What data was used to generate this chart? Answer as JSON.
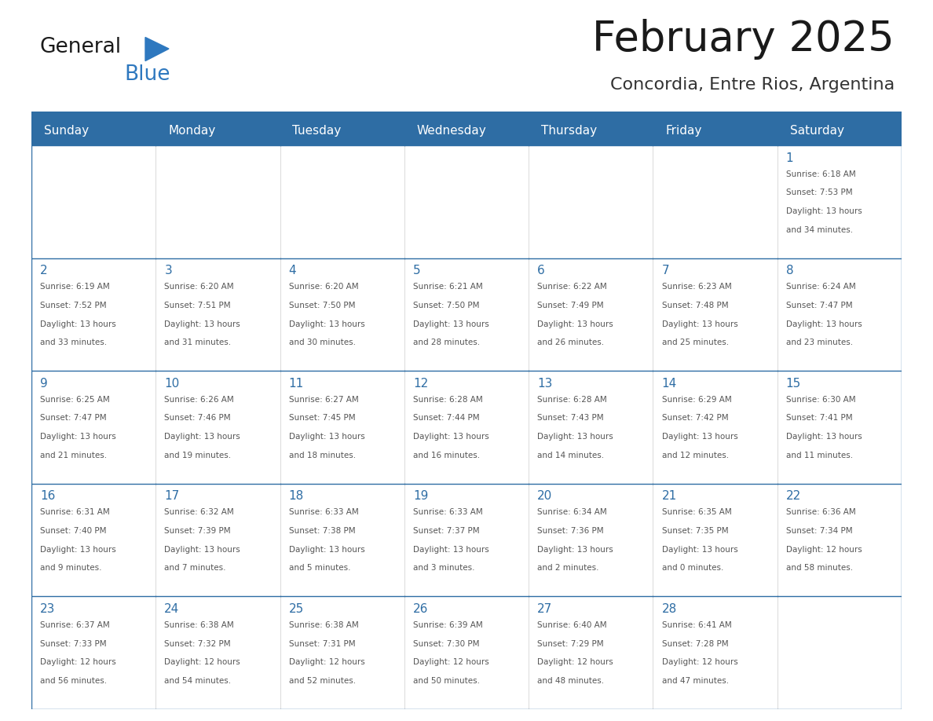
{
  "title": "February 2025",
  "subtitle": "Concordia, Entre Rios, Argentina",
  "header_bg": "#2E6DA4",
  "header_text": "#FFFFFF",
  "cell_bg": "#FFFFFF",
  "cell_bg_last_row": "#F5F5F5",
  "grid_line_color": "#2E6DA4",
  "day_number_color": "#2E6DA4",
  "cell_text_color": "#555555",
  "days_of_week": [
    "Sunday",
    "Monday",
    "Tuesday",
    "Wednesday",
    "Thursday",
    "Friday",
    "Saturday"
  ],
  "title_color": "#1a1a1a",
  "subtitle_color": "#333333",
  "logo_general_color": "#1a1a1a",
  "logo_blue_color": "#2E78BF",
  "calendar": [
    [
      {
        "day": "",
        "lines": []
      },
      {
        "day": "",
        "lines": []
      },
      {
        "day": "",
        "lines": []
      },
      {
        "day": "",
        "lines": []
      },
      {
        "day": "",
        "lines": []
      },
      {
        "day": "",
        "lines": []
      },
      {
        "day": "1",
        "lines": [
          "Sunrise: 6:18 AM",
          "Sunset: 7:53 PM",
          "Daylight: 13 hours",
          "and 34 minutes."
        ]
      }
    ],
    [
      {
        "day": "2",
        "lines": [
          "Sunrise: 6:19 AM",
          "Sunset: 7:52 PM",
          "Daylight: 13 hours",
          "and 33 minutes."
        ]
      },
      {
        "day": "3",
        "lines": [
          "Sunrise: 6:20 AM",
          "Sunset: 7:51 PM",
          "Daylight: 13 hours",
          "and 31 minutes."
        ]
      },
      {
        "day": "4",
        "lines": [
          "Sunrise: 6:20 AM",
          "Sunset: 7:50 PM",
          "Daylight: 13 hours",
          "and 30 minutes."
        ]
      },
      {
        "day": "5",
        "lines": [
          "Sunrise: 6:21 AM",
          "Sunset: 7:50 PM",
          "Daylight: 13 hours",
          "and 28 minutes."
        ]
      },
      {
        "day": "6",
        "lines": [
          "Sunrise: 6:22 AM",
          "Sunset: 7:49 PM",
          "Daylight: 13 hours",
          "and 26 minutes."
        ]
      },
      {
        "day": "7",
        "lines": [
          "Sunrise: 6:23 AM",
          "Sunset: 7:48 PM",
          "Daylight: 13 hours",
          "and 25 minutes."
        ]
      },
      {
        "day": "8",
        "lines": [
          "Sunrise: 6:24 AM",
          "Sunset: 7:47 PM",
          "Daylight: 13 hours",
          "and 23 minutes."
        ]
      }
    ],
    [
      {
        "day": "9",
        "lines": [
          "Sunrise: 6:25 AM",
          "Sunset: 7:47 PM",
          "Daylight: 13 hours",
          "and 21 minutes."
        ]
      },
      {
        "day": "10",
        "lines": [
          "Sunrise: 6:26 AM",
          "Sunset: 7:46 PM",
          "Daylight: 13 hours",
          "and 19 minutes."
        ]
      },
      {
        "day": "11",
        "lines": [
          "Sunrise: 6:27 AM",
          "Sunset: 7:45 PM",
          "Daylight: 13 hours",
          "and 18 minutes."
        ]
      },
      {
        "day": "12",
        "lines": [
          "Sunrise: 6:28 AM",
          "Sunset: 7:44 PM",
          "Daylight: 13 hours",
          "and 16 minutes."
        ]
      },
      {
        "day": "13",
        "lines": [
          "Sunrise: 6:28 AM",
          "Sunset: 7:43 PM",
          "Daylight: 13 hours",
          "and 14 minutes."
        ]
      },
      {
        "day": "14",
        "lines": [
          "Sunrise: 6:29 AM",
          "Sunset: 7:42 PM",
          "Daylight: 13 hours",
          "and 12 minutes."
        ]
      },
      {
        "day": "15",
        "lines": [
          "Sunrise: 6:30 AM",
          "Sunset: 7:41 PM",
          "Daylight: 13 hours",
          "and 11 minutes."
        ]
      }
    ],
    [
      {
        "day": "16",
        "lines": [
          "Sunrise: 6:31 AM",
          "Sunset: 7:40 PM",
          "Daylight: 13 hours",
          "and 9 minutes."
        ]
      },
      {
        "day": "17",
        "lines": [
          "Sunrise: 6:32 AM",
          "Sunset: 7:39 PM",
          "Daylight: 13 hours",
          "and 7 minutes."
        ]
      },
      {
        "day": "18",
        "lines": [
          "Sunrise: 6:33 AM",
          "Sunset: 7:38 PM",
          "Daylight: 13 hours",
          "and 5 minutes."
        ]
      },
      {
        "day": "19",
        "lines": [
          "Sunrise: 6:33 AM",
          "Sunset: 7:37 PM",
          "Daylight: 13 hours",
          "and 3 minutes."
        ]
      },
      {
        "day": "20",
        "lines": [
          "Sunrise: 6:34 AM",
          "Sunset: 7:36 PM",
          "Daylight: 13 hours",
          "and 2 minutes."
        ]
      },
      {
        "day": "21",
        "lines": [
          "Sunrise: 6:35 AM",
          "Sunset: 7:35 PM",
          "Daylight: 13 hours",
          "and 0 minutes."
        ]
      },
      {
        "day": "22",
        "lines": [
          "Sunrise: 6:36 AM",
          "Sunset: 7:34 PM",
          "Daylight: 12 hours",
          "and 58 minutes."
        ]
      }
    ],
    [
      {
        "day": "23",
        "lines": [
          "Sunrise: 6:37 AM",
          "Sunset: 7:33 PM",
          "Daylight: 12 hours",
          "and 56 minutes."
        ]
      },
      {
        "day": "24",
        "lines": [
          "Sunrise: 6:38 AM",
          "Sunset: 7:32 PM",
          "Daylight: 12 hours",
          "and 54 minutes."
        ]
      },
      {
        "day": "25",
        "lines": [
          "Sunrise: 6:38 AM",
          "Sunset: 7:31 PM",
          "Daylight: 12 hours",
          "and 52 minutes."
        ]
      },
      {
        "day": "26",
        "lines": [
          "Sunrise: 6:39 AM",
          "Sunset: 7:30 PM",
          "Daylight: 12 hours",
          "and 50 minutes."
        ]
      },
      {
        "day": "27",
        "lines": [
          "Sunrise: 6:40 AM",
          "Sunset: 7:29 PM",
          "Daylight: 12 hours",
          "and 48 minutes."
        ]
      },
      {
        "day": "28",
        "lines": [
          "Sunrise: 6:41 AM",
          "Sunset: 7:28 PM",
          "Daylight: 12 hours",
          "and 47 minutes."
        ]
      },
      {
        "day": "",
        "lines": []
      }
    ]
  ]
}
